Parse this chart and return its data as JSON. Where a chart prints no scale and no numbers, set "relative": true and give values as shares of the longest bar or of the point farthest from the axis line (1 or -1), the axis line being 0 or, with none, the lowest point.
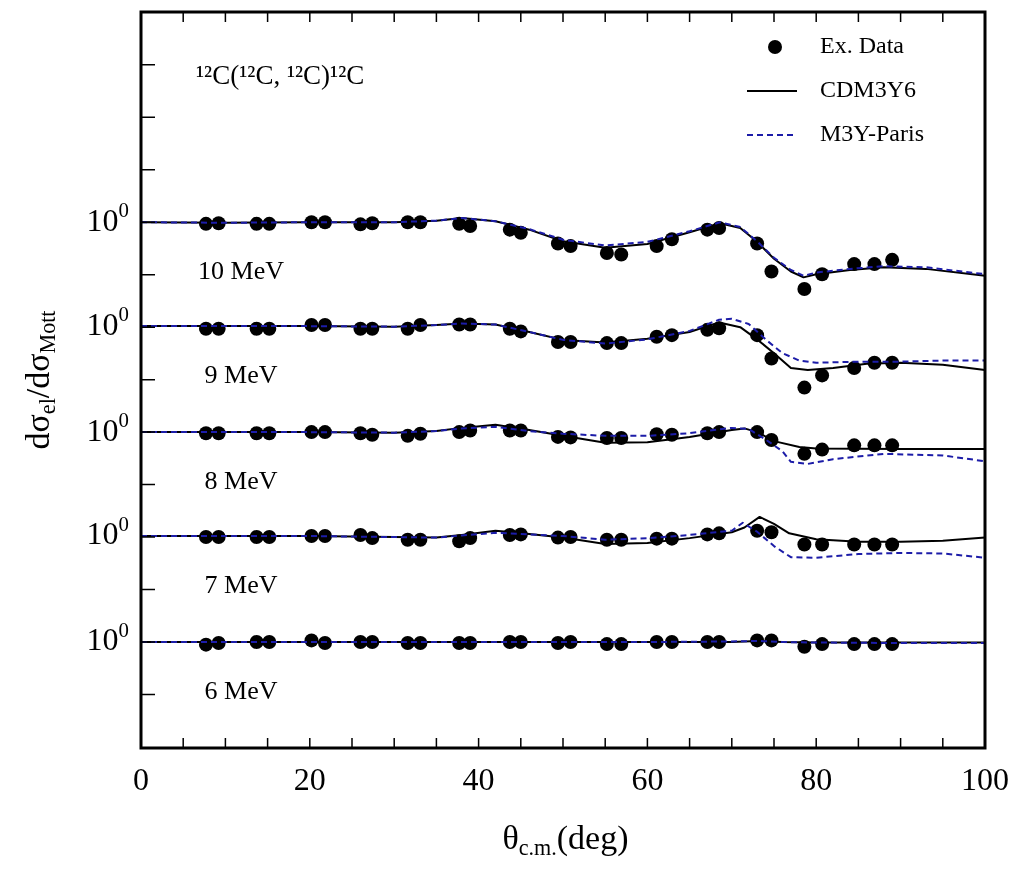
{
  "chart_data": {
    "type": "line",
    "relative": true,
    "title": "¹²C(¹²C, ¹²C)¹²C",
    "xlabel": "θ$_{c.m.}$(deg)",
    "ylabel": "dσ$_{el}$/dσ$_{Mott}$",
    "x": [
      7.7,
      9.2,
      13.7,
      15.2,
      20.2,
      21.8,
      26.0,
      27.4,
      31.6,
      33.1,
      37.7,
      39.0,
      43.7,
      45.0,
      49.4,
      50.9,
      55.2,
      56.9,
      61.1,
      62.9,
      67.1,
      68.5,
      73.0,
      74.7,
      78.6,
      80.7,
      84.5,
      86.9,
      89.0
    ],
    "xlim": [
      0,
      100
    ],
    "xticks": [
      0,
      {
        "value": 5,
        "label": null
      },
      {
        "value": 10,
        "label": null
      },
      {
        "value": 15,
        "label": null
      },
      20,
      {
        "value": 25,
        "label": null
      },
      {
        "value": 30,
        "label": null
      },
      {
        "value": 35,
        "label": null
      },
      40,
      {
        "value": 45,
        "label": null
      },
      {
        "value": 50,
        "label": null
      },
      {
        "value": 55,
        "label": null
      },
      60,
      {
        "value": 65,
        "label": null
      },
      {
        "value": 70,
        "label": null
      },
      {
        "value": 75,
        "label": null
      },
      80,
      {
        "value": 85,
        "label": null
      },
      {
        "value": 90,
        "label": null
      },
      {
        "value": 95,
        "label": null
      },
      100
    ],
    "legend": "top right",
    "annotations": [
      "10$^{0}$",
      "10 MeV",
      "10$^{0}$",
      "9 MeV",
      "10$^{0}$",
      "8 MeV",
      "10$^{0}$",
      "7 MeV",
      "10$^{0}$",
      "6 MeV"
    ],
    "series": [
      {
        "type": "scatter",
        "name": "Ex. Data",
        "color": "#000000",
        "marker": "circle",
        "values": [
          0.989,
          0.99,
          0.989,
          0.989,
          0.992,
          0.992,
          0.988,
          0.99,
          0.992,
          0.992,
          0.989,
          0.985,
          0.978,
          0.972,
          0.952,
          0.947,
          0.934,
          0.931,
          0.947,
          0.96,
          0.978,
          0.981,
          0.952,
          0.899,
          0.866,
          0.894,
          0.913,
          0.913,
          0.921
        ]
      },
      {
        "name": "CDM3Y6",
        "color": "#000000",
        "line_style": "solid",
        "x": [
          0,
          10,
          20,
          30,
          35,
          38,
          42,
          46,
          50,
          55,
          60,
          65,
          68.6,
          71,
          73,
          75,
          77,
          78.5,
          80,
          84,
          88,
          93,
          100
        ],
        "values": [
          0.992,
          0.991,
          0.992,
          0.992,
          0.995,
          1.0,
          0.994,
          0.978,
          0.956,
          0.944,
          0.951,
          0.973,
          0.99,
          0.981,
          0.955,
          0.923,
          0.899,
          0.888,
          0.894,
          0.902,
          0.907,
          0.904,
          0.891
        ]
      },
      {
        "name": "M3Y-Paris",
        "color": "#1c1ca8",
        "line_style": "dashed",
        "x": [
          0,
          10,
          20,
          30,
          35,
          38,
          42,
          46,
          50,
          55,
          60,
          65,
          68.6,
          71,
          73,
          75,
          77,
          78.5,
          80,
          84,
          88,
          93,
          100
        ],
        "values": [
          0.992,
          0.991,
          0.992,
          0.992,
          0.995,
          1.0,
          0.994,
          0.979,
          0.959,
          0.948,
          0.955,
          0.975,
          0.992,
          0.983,
          0.956,
          0.925,
          0.902,
          0.891,
          0.897,
          0.904,
          0.909,
          0.907,
          0.894
        ]
      },
      {
        "type": "scatter",
        "color": "#000000",
        "marker": "circle",
        "values": [
          0.791,
          0.791,
          0.791,
          0.791,
          0.798,
          0.798,
          0.791,
          0.791,
          0.791,
          0.798,
          0.799,
          0.799,
          0.791,
          0.786,
          0.766,
          0.766,
          0.764,
          0.764,
          0.776,
          0.779,
          0.789,
          0.792,
          0.779,
          0.735,
          0.68,
          0.703,
          0.717,
          0.727,
          0.727
        ]
      },
      {
        "color": "#000000",
        "line_style": "solid",
        "x": [
          0,
          10,
          20,
          30,
          35,
          38,
          42,
          46,
          50,
          55,
          60,
          65,
          68.5,
          71,
          73,
          75,
          77,
          79,
          82,
          86,
          90,
          95,
          100
        ],
        "values": [
          0.796,
          0.796,
          0.796,
          0.795,
          0.798,
          0.801,
          0.799,
          0.785,
          0.77,
          0.765,
          0.772,
          0.785,
          0.803,
          0.794,
          0.771,
          0.745,
          0.717,
          0.713,
          0.717,
          0.725,
          0.727,
          0.723,
          0.713
        ]
      },
      {
        "color": "#1c1ca8",
        "line_style": "dashed",
        "x": [
          0,
          10,
          20,
          30,
          35,
          38,
          42,
          46,
          50,
          55,
          60,
          65,
          68.5,
          70,
          72,
          74,
          76,
          78,
          80,
          85,
          90,
          95,
          100
        ],
        "values": [
          0.796,
          0.796,
          0.796,
          0.795,
          0.798,
          0.801,
          0.799,
          0.785,
          0.77,
          0.763,
          0.771,
          0.787,
          0.808,
          0.81,
          0.8,
          0.771,
          0.745,
          0.731,
          0.727,
          0.729,
          0.729,
          0.731,
          0.731
        ]
      },
      {
        "type": "scatter",
        "color": "#000000",
        "marker": "circle",
        "values": [
          0.594,
          0.594,
          0.594,
          0.594,
          0.596,
          0.596,
          0.594,
          0.591,
          0.589,
          0.593,
          0.596,
          0.599,
          0.599,
          0.599,
          0.587,
          0.586,
          0.585,
          0.585,
          0.592,
          0.591,
          0.594,
          0.596,
          0.596,
          0.581,
          0.555,
          0.563,
          0.571,
          0.571,
          0.571
        ]
      },
      {
        "color": "#000000",
        "line_style": "solid",
        "x": [
          0,
          10,
          20,
          30,
          35,
          38,
          42,
          46,
          50,
          55,
          60,
          65,
          70,
          71.5,
          73,
          75,
          78,
          80,
          90,
          100
        ],
        "values": [
          0.596,
          0.596,
          0.596,
          0.595,
          0.598,
          0.604,
          0.61,
          0.6,
          0.589,
          0.576,
          0.577,
          0.587,
          0.6,
          0.603,
          0.596,
          0.579,
          0.568,
          0.565,
          0.564,
          0.564
        ]
      },
      {
        "color": "#1c1ca8",
        "line_style": "dashed",
        "x": [
          0,
          10,
          20,
          30,
          35,
          38,
          42,
          46,
          50,
          55,
          60,
          65,
          70,
          72,
          74,
          76,
          77,
          79,
          82,
          88,
          95,
          100
        ],
        "values": [
          0.596,
          0.596,
          0.596,
          0.595,
          0.598,
          0.603,
          0.606,
          0.598,
          0.593,
          0.589,
          0.589,
          0.594,
          0.604,
          0.602,
          0.582,
          0.56,
          0.54,
          0.536,
          0.545,
          0.555,
          0.552,
          0.541
        ]
      },
      {
        "type": "scatter",
        "color": "#000000",
        "marker": "circle",
        "values": [
          0.398,
          0.398,
          0.398,
          0.398,
          0.4,
          0.4,
          0.402,
          0.396,
          0.393,
          0.393,
          0.39,
          0.396,
          0.402,
          0.403,
          0.397,
          0.398,
          0.393,
          0.393,
          0.395,
          0.395,
          0.403,
          0.405,
          0.41,
          0.407,
          0.384,
          0.384,
          0.384,
          0.384,
          0.384
        ]
      },
      {
        "color": "#000000",
        "line_style": "solid",
        "x": [
          0,
          10,
          20,
          30,
          35,
          38,
          42,
          46,
          50,
          55,
          60,
          65,
          70,
          71.5,
          73.3,
          75,
          76.8,
          80,
          85,
          90,
          95,
          100
        ],
        "values": [
          0.4,
          0.4,
          0.4,
          0.398,
          0.397,
          0.402,
          0.41,
          0.404,
          0.397,
          0.385,
          0.387,
          0.396,
          0.407,
          0.416,
          0.436,
          0.423,
          0.405,
          0.394,
          0.389,
          0.389,
          0.391,
          0.397
        ]
      },
      {
        "color": "#1c1ca8",
        "line_style": "dashed",
        "x": [
          0,
          10,
          20,
          30,
          35,
          38,
          42,
          46,
          50,
          55,
          60,
          65,
          70,
          71.3,
          73,
          75,
          77,
          80,
          85,
          90,
          95,
          100
        ],
        "values": [
          0.4,
          0.4,
          0.4,
          0.398,
          0.397,
          0.401,
          0.406,
          0.403,
          0.4,
          0.393,
          0.396,
          0.402,
          0.41,
          0.425,
          0.408,
          0.381,
          0.36,
          0.359,
          0.366,
          0.368,
          0.367,
          0.359
        ]
      },
      {
        "type": "scatter",
        "color": "#000000",
        "marker": "circle",
        "values": [
          0.195,
          0.198,
          0.2,
          0.2,
          0.203,
          0.198,
          0.2,
          0.2,
          0.198,
          0.198,
          0.198,
          0.198,
          0.2,
          0.2,
          0.198,
          0.2,
          0.196,
          0.196,
          0.2,
          0.2,
          0.2,
          0.2,
          0.203,
          0.203,
          0.191,
          0.196,
          0.196,
          0.196,
          0.196
        ]
      },
      {
        "color": "#000000",
        "line_style": "solid",
        "x": [
          0,
          20,
          40,
          60,
          70,
          73,
          76,
          80,
          90,
          100
        ],
        "values": [
          0.2,
          0.2,
          0.2,
          0.2,
          0.2,
          0.202,
          0.2,
          0.199,
          0.199,
          0.199
        ]
      },
      {
        "color": "#1c1ca8",
        "line_style": "dashed",
        "x": [
          0,
          20,
          40,
          60,
          70,
          73,
          76,
          80,
          90,
          100
        ],
        "values": [
          0.2,
          0.2,
          0.2,
          0.2,
          0.201,
          0.202,
          0.2,
          0.199,
          0.198,
          0.198
        ]
      }
    ]
  }
}
